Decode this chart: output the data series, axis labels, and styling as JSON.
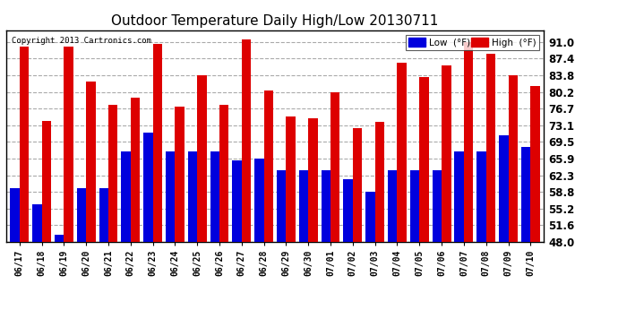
{
  "title": "Outdoor Temperature Daily High/Low 20130711",
  "copyright": "Copyright 2013 Cartronics.com",
  "background_color": "#ffffff",
  "plot_bg_color": "#ffffff",
  "grid_color": "#aaaaaa",
  "dates": [
    "06/17",
    "06/18",
    "06/19",
    "06/20",
    "06/21",
    "06/22",
    "06/23",
    "06/24",
    "06/25",
    "06/26",
    "06/27",
    "06/28",
    "06/29",
    "06/30",
    "07/01",
    "07/02",
    "07/03",
    "07/04",
    "07/05",
    "07/06",
    "07/07",
    "07/08",
    "07/09",
    "07/10"
  ],
  "high": [
    90.0,
    74.0,
    90.0,
    82.5,
    77.5,
    79.0,
    90.5,
    77.0,
    83.8,
    77.5,
    91.5,
    80.5,
    75.0,
    74.5,
    80.2,
    72.5,
    73.8,
    86.5,
    83.5,
    86.0,
    91.0,
    88.5,
    83.8,
    81.5
  ],
  "low": [
    59.5,
    56.0,
    49.5,
    59.5,
    59.5,
    67.5,
    71.5,
    67.5,
    67.5,
    67.5,
    65.5,
    66.0,
    63.5,
    63.5,
    63.5,
    61.5,
    58.8,
    63.5,
    63.5,
    63.5,
    67.5,
    67.5,
    71.0,
    68.5
  ],
  "ylim": [
    48.0,
    93.5
  ],
  "yticks": [
    48.0,
    51.6,
    55.2,
    58.8,
    62.3,
    65.9,
    69.5,
    73.1,
    76.7,
    80.2,
    83.8,
    87.4,
    91.0
  ],
  "low_color": "#0000dd",
  "high_color": "#dd0000",
  "bar_width": 0.42,
  "legend_low_label": "Low  (°F)",
  "legend_high_label": "High  (°F)",
  "figsize": [
    6.9,
    3.75
  ],
  "dpi": 100
}
